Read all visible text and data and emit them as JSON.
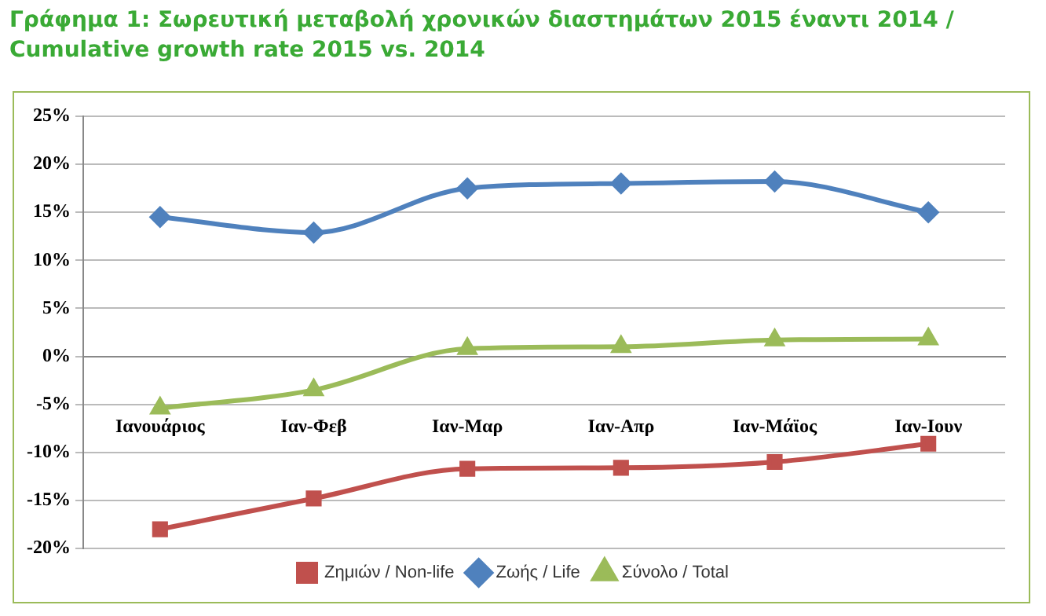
{
  "chart_data": {
    "type": "line",
    "title": "Γράφημα 1: Σωρευτική μεταβολή χρονικών διαστημάτων 2015 έναντι 2014 / Cumulative growth rate 2015 vs. 2014",
    "categories": [
      "Ιανουάριος",
      "Ιαν-Φεβ",
      "Ιαν-Μαρ",
      "Ιαν-Απρ",
      "Ιαν-Μάϊος",
      "Ιαν-Ιουν"
    ],
    "series": [
      {
        "name": "Ζημιών / Non-life",
        "color": "#c0504d",
        "marker": "square",
        "values": [
          -18,
          -14.8,
          -11.7,
          -11.6,
          -11,
          -9.1
        ]
      },
      {
        "name": "Ζωής / Life",
        "color": "#4f81bd",
        "marker": "diamond",
        "values": [
          14.5,
          12.9,
          17.5,
          18,
          18.2,
          15
        ]
      },
      {
        "name": "Σύνολο / Total",
        "color": "#9bbb59",
        "marker": "triangle",
        "values": [
          -5.4,
          -3.5,
          0.8,
          1,
          1.7,
          1.8
        ]
      }
    ],
    "ylim": [
      -20,
      25
    ],
    "yticks": [
      {
        "value": -20,
        "label": "-20%"
      },
      {
        "value": -15,
        "label": "-15%"
      },
      {
        "value": -10,
        "label": "-10%"
      },
      {
        "value": -5,
        "label": "-5%"
      },
      {
        "value": 0,
        "label": "0%"
      },
      {
        "value": 5,
        "label": "5%"
      },
      {
        "value": 10,
        "label": "10%"
      },
      {
        "value": 15,
        "label": "15%"
      },
      {
        "value": 20,
        "label": "20%"
      },
      {
        "value": 25,
        "label": "25%"
      }
    ],
    "grid": "y",
    "legend": "bottom"
  }
}
